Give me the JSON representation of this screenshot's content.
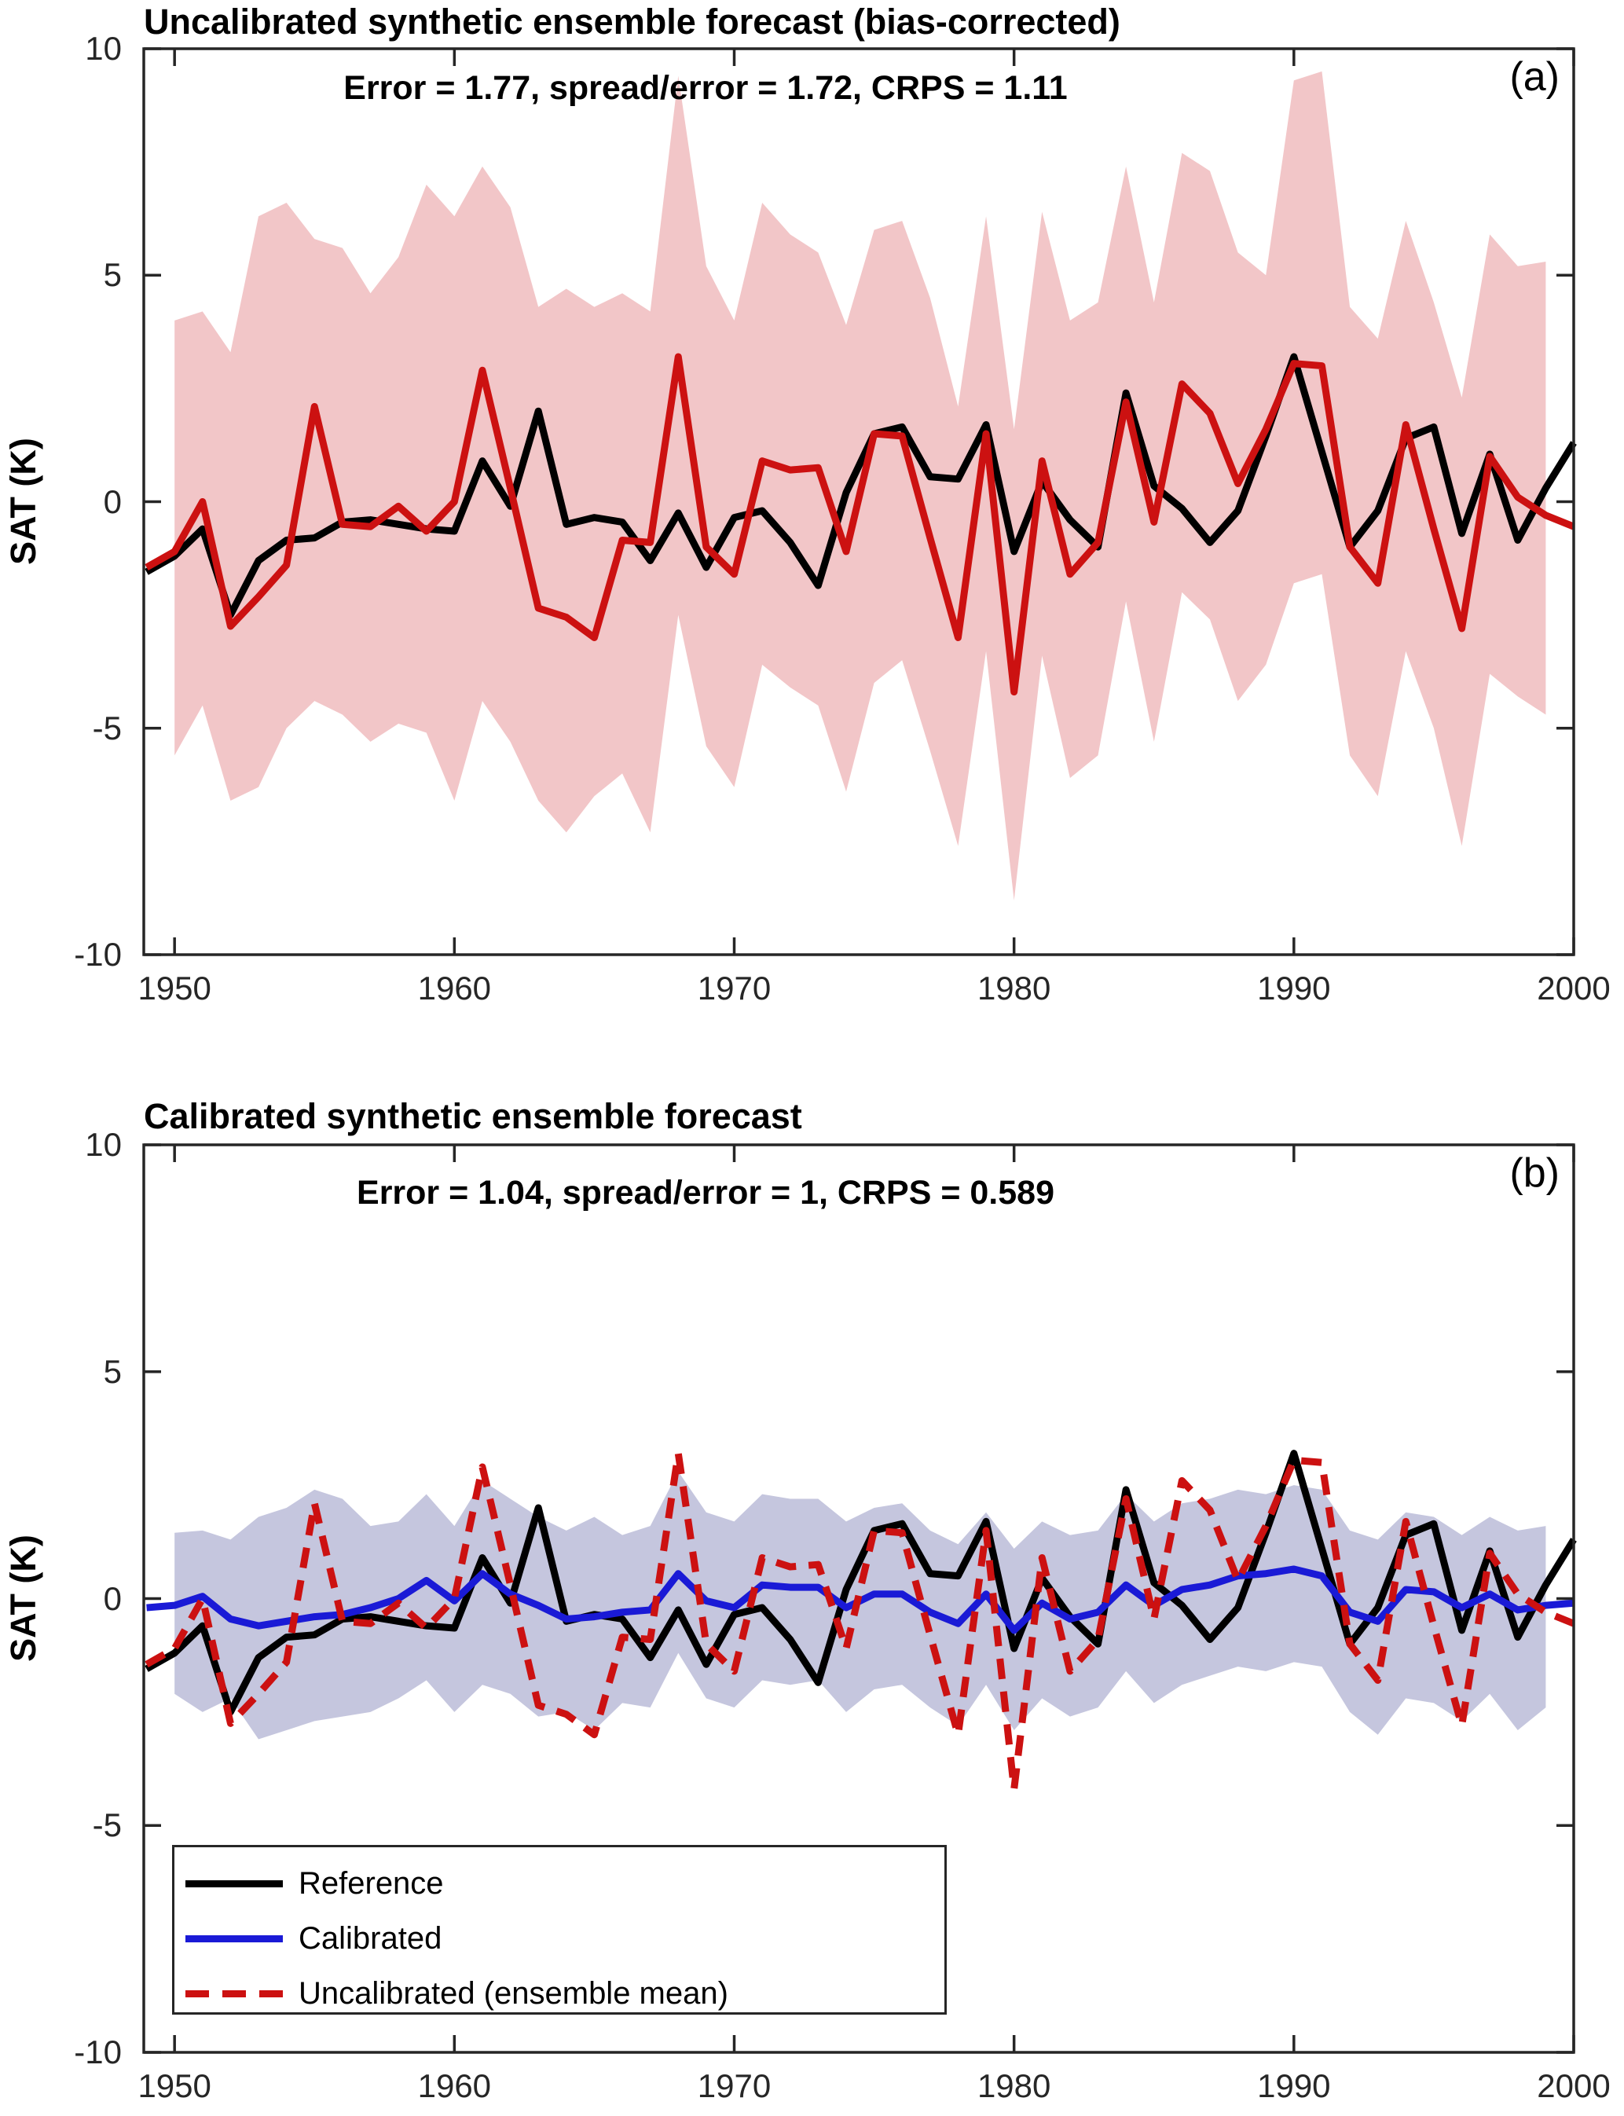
{
  "figure": {
    "background": "#ffffff",
    "axis_color": "#262626",
    "font_color": "#000000"
  },
  "chart_data": [
    {
      "id": "a",
      "type": "line",
      "title": "Uncalibrated synthetic ensemble forecast (bias-corrected)",
      "stats_text": "Error = 1.77,  spread/error = 1.72, CRPS = 1.11",
      "corner_label": "(a)",
      "ylabel": "SAT (K)",
      "xlabel": "",
      "xlim": [
        1948.9,
        2000
      ],
      "ylim": [
        -10,
        10
      ],
      "xticks": [
        1950,
        1960,
        1970,
        1980,
        1990,
        2000
      ],
      "yticks": [
        -10,
        -5,
        0,
        5,
        10
      ],
      "grid": false,
      "legend_position": "none",
      "x_years": [
        1949,
        1950,
        1951,
        1952,
        1953,
        1954,
        1955,
        1956,
        1957,
        1958,
        1959,
        1960,
        1961,
        1962,
        1963,
        1964,
        1965,
        1966,
        1967,
        1968,
        1969,
        1970,
        1971,
        1972,
        1973,
        1974,
        1975,
        1976,
        1977,
        1978,
        1979,
        1980,
        1981,
        1982,
        1983,
        1984,
        1985,
        1986,
        1987,
        1988,
        1989,
        1990,
        1991,
        1992,
        1993,
        1994,
        1995,
        1996,
        1997,
        1998,
        1999,
        2000
      ],
      "band": {
        "name": "ensemble spread",
        "color": "#f2c6c8",
        "years": [
          1950,
          1951,
          1952,
          1953,
          1954,
          1955,
          1956,
          1957,
          1958,
          1959,
          1960,
          1961,
          1962,
          1963,
          1964,
          1965,
          1966,
          1967,
          1968,
          1969,
          1970,
          1971,
          1972,
          1973,
          1974,
          1975,
          1976,
          1977,
          1978,
          1979,
          1980,
          1981,
          1982,
          1983,
          1984,
          1985,
          1986,
          1987,
          1988,
          1989,
          1990,
          1991,
          1992,
          1993,
          1994,
          1995,
          1996,
          1997,
          1998,
          1999
        ],
        "upper": [
          4.0,
          4.2,
          3.3,
          6.3,
          6.6,
          5.8,
          5.6,
          4.6,
          5.4,
          7.0,
          6.3,
          7.4,
          6.5,
          4.3,
          4.7,
          4.3,
          4.6,
          4.2,
          9.4,
          5.2,
          4.0,
          6.6,
          5.9,
          5.5,
          3.9,
          6.0,
          6.2,
          4.5,
          2.1,
          6.3,
          1.6,
          6.4,
          4.0,
          4.4,
          7.4,
          4.4,
          7.7,
          7.3,
          5.5,
          5.0,
          9.3,
          9.5,
          4.3,
          3.6,
          6.2,
          4.4,
          2.3,
          5.9,
          5.2,
          5.3
        ],
        "lower": [
          -5.6,
          -4.5,
          -6.6,
          -6.3,
          -5.0,
          -4.4,
          -4.7,
          -5.3,
          -4.9,
          -5.1,
          -6.6,
          -4.4,
          -5.3,
          -6.6,
          -7.3,
          -6.5,
          -6.0,
          -7.3,
          -2.5,
          -5.4,
          -6.3,
          -3.6,
          -4.1,
          -4.5,
          -6.4,
          -4.0,
          -3.5,
          -5.5,
          -7.6,
          -3.3,
          -8.8,
          -3.4,
          -6.1,
          -5.6,
          -2.2,
          -5.3,
          -2.0,
          -2.6,
          -4.4,
          -3.6,
          -1.8,
          -1.6,
          -5.6,
          -6.5,
          -3.3,
          -5.0,
          -7.6,
          -3.8,
          -4.3,
          -4.7
        ]
      },
      "series": [
        {
          "name": "Reference",
          "color": "#000000",
          "style": "solid",
          "values": [
            -1.55,
            -1.2,
            -0.6,
            -2.5,
            -1.3,
            -0.85,
            -0.8,
            -0.45,
            -0.4,
            -0.5,
            -0.6,
            -0.65,
            0.9,
            -0.1,
            2.0,
            -0.5,
            -0.35,
            -0.45,
            -1.3,
            -0.25,
            -1.45,
            -0.35,
            -0.2,
            -0.9,
            -1.85,
            0.2,
            1.5,
            1.65,
            0.55,
            0.5,
            1.7,
            -1.1,
            0.45,
            -0.4,
            -1.0,
            2.4,
            0.35,
            -0.15,
            -0.9,
            -0.2,
            1.45,
            3.2,
            1.1,
            -1.0,
            -0.2,
            1.4,
            1.65,
            -0.7,
            1.05,
            -0.85,
            0.3,
            1.3
          ]
        },
        {
          "name": "Uncalibrated (ensemble mean)",
          "color": "#cc1111",
          "style": "solid",
          "values": [
            -1.45,
            -1.1,
            0.0,
            -2.75,
            -2.1,
            -1.4,
            2.1,
            -0.5,
            -0.55,
            -0.1,
            -0.65,
            0.0,
            2.9,
            0.3,
            -2.35,
            -2.55,
            -3.0,
            -0.85,
            -0.9,
            3.2,
            -1.0,
            -1.6,
            0.9,
            0.7,
            0.75,
            -1.1,
            1.5,
            1.45,
            -0.8,
            -3.0,
            1.5,
            -4.2,
            0.9,
            -1.6,
            -0.9,
            2.2,
            -0.45,
            2.6,
            1.95,
            0.4,
            1.6,
            3.05,
            3.0,
            -1.0,
            -1.8,
            1.7,
            -0.6,
            -2.8,
            1.0,
            0.1,
            -0.3,
            -0.55
          ]
        }
      ]
    },
    {
      "id": "b",
      "type": "line",
      "title": "Calibrated synthetic ensemble forecast",
      "stats_text": "Error = 1.04, spread/error = 1, CRPS = 0.589",
      "corner_label": "(b)",
      "ylabel": "SAT (K)",
      "xlabel": "",
      "xlim": [
        1948.9,
        2000
      ],
      "ylim": [
        -10,
        10
      ],
      "xticks": [
        1950,
        1960,
        1970,
        1980,
        1990,
        2000
      ],
      "yticks": [
        -10,
        -5,
        0,
        5,
        10
      ],
      "grid": false,
      "legend_position": "bottom-left",
      "x_years": [
        1949,
        1950,
        1951,
        1952,
        1953,
        1954,
        1955,
        1956,
        1957,
        1958,
        1959,
        1960,
        1961,
        1962,
        1963,
        1964,
        1965,
        1966,
        1967,
        1968,
        1969,
        1970,
        1971,
        1972,
        1973,
        1974,
        1975,
        1976,
        1977,
        1978,
        1979,
        1980,
        1981,
        1982,
        1983,
        1984,
        1985,
        1986,
        1987,
        1988,
        1989,
        1990,
        1991,
        1992,
        1993,
        1994,
        1995,
        1996,
        1997,
        1998,
        1999,
        2000
      ],
      "band": {
        "name": "calibrated spread",
        "color": "#c5c6de",
        "years": [
          1950,
          1951,
          1952,
          1953,
          1954,
          1955,
          1956,
          1957,
          1958,
          1959,
          1960,
          1961,
          1962,
          1963,
          1964,
          1965,
          1966,
          1967,
          1968,
          1969,
          1970,
          1971,
          1972,
          1973,
          1974,
          1975,
          1976,
          1977,
          1978,
          1979,
          1980,
          1981,
          1982,
          1983,
          1984,
          1985,
          1986,
          1987,
          1988,
          1989,
          1990,
          1991,
          1992,
          1993,
          1994,
          1995,
          1996,
          1997,
          1998,
          1999
        ],
        "upper": [
          1.45,
          1.5,
          1.3,
          1.8,
          2.0,
          2.4,
          2.2,
          1.6,
          1.7,
          2.3,
          1.6,
          2.6,
          2.2,
          1.8,
          1.5,
          1.8,
          1.4,
          1.6,
          2.8,
          1.9,
          1.7,
          2.3,
          2.2,
          2.2,
          1.7,
          2.0,
          2.1,
          1.5,
          1.2,
          1.9,
          1.1,
          1.7,
          1.4,
          1.5,
          2.3,
          1.7,
          2.1,
          2.2,
          2.4,
          2.3,
          2.5,
          2.4,
          1.5,
          1.3,
          1.9,
          1.8,
          1.4,
          1.8,
          1.5,
          1.6
        ],
        "lower": [
          -2.1,
          -2.5,
          -2.2,
          -3.1,
          -2.9,
          -2.7,
          -2.6,
          -2.5,
          -2.2,
          -1.8,
          -2.5,
          -1.9,
          -2.1,
          -2.6,
          -2.5,
          -2.9,
          -2.3,
          -2.4,
          -1.2,
          -2.2,
          -2.4,
          -1.8,
          -1.9,
          -1.8,
          -2.5,
          -2.0,
          -1.9,
          -2.4,
          -2.8,
          -1.9,
          -2.9,
          -2.2,
          -2.6,
          -2.4,
          -1.6,
          -2.3,
          -1.9,
          -1.7,
          -1.5,
          -1.6,
          -1.4,
          -1.5,
          -2.5,
          -3.0,
          -2.2,
          -2.3,
          -2.7,
          -2.1,
          -2.9,
          -2.4
        ]
      },
      "series": [
        {
          "name": "Reference",
          "color": "#000000",
          "style": "solid",
          "values": [
            -1.55,
            -1.2,
            -0.6,
            -2.5,
            -1.3,
            -0.85,
            -0.8,
            -0.45,
            -0.4,
            -0.5,
            -0.6,
            -0.65,
            0.9,
            -0.1,
            2.0,
            -0.5,
            -0.35,
            -0.45,
            -1.3,
            -0.25,
            -1.45,
            -0.35,
            -0.2,
            -0.9,
            -1.85,
            0.2,
            1.5,
            1.65,
            0.55,
            0.5,
            1.7,
            -1.1,
            0.45,
            -0.4,
            -1.0,
            2.4,
            0.35,
            -0.15,
            -0.9,
            -0.2,
            1.45,
            3.2,
            1.1,
            -1.0,
            -0.2,
            1.4,
            1.65,
            -0.7,
            1.05,
            -0.85,
            0.3,
            1.3
          ]
        },
        {
          "name": "Calibrated",
          "color": "#1a1ad6",
          "style": "solid",
          "values": [
            -0.2,
            -0.15,
            0.05,
            -0.45,
            -0.6,
            -0.5,
            -0.4,
            -0.35,
            -0.2,
            0.0,
            0.4,
            -0.05,
            0.55,
            0.1,
            -0.15,
            -0.45,
            -0.4,
            -0.3,
            -0.25,
            0.55,
            -0.05,
            -0.2,
            0.3,
            0.25,
            0.25,
            -0.2,
            0.1,
            0.1,
            -0.3,
            -0.55,
            0.1,
            -0.7,
            -0.1,
            -0.45,
            -0.3,
            0.3,
            -0.15,
            0.2,
            0.3,
            0.5,
            0.55,
            0.65,
            0.5,
            -0.3,
            -0.5,
            0.2,
            0.15,
            -0.2,
            0.1,
            -0.25,
            -0.15,
            -0.1
          ]
        },
        {
          "name": "Uncalibrated (ensemble mean)",
          "color": "#cc1111",
          "style": "dashed",
          "values": [
            -1.45,
            -1.1,
            0.0,
            -2.75,
            -2.1,
            -1.4,
            2.1,
            -0.5,
            -0.55,
            -0.1,
            -0.65,
            0.0,
            2.9,
            0.3,
            -2.35,
            -2.55,
            -3.0,
            -0.85,
            -0.9,
            3.2,
            -1.0,
            -1.6,
            0.9,
            0.7,
            0.75,
            -1.1,
            1.5,
            1.45,
            -0.8,
            -3.0,
            1.5,
            -4.2,
            0.9,
            -1.6,
            -0.9,
            2.2,
            -0.45,
            2.6,
            1.95,
            0.4,
            1.6,
            3.05,
            3.0,
            -1.0,
            -1.8,
            1.7,
            -0.6,
            -2.8,
            1.0,
            0.1,
            -0.3,
            -0.55
          ]
        }
      ],
      "legend": {
        "entries": [
          {
            "label": "Reference",
            "color": "#000000",
            "dashed": false
          },
          {
            "label": "Calibrated",
            "color": "#1a1ad6",
            "dashed": false
          },
          {
            "label": "Uncalibrated (ensemble mean)",
            "color": "#cc1111",
            "dashed": true
          }
        ]
      }
    }
  ]
}
